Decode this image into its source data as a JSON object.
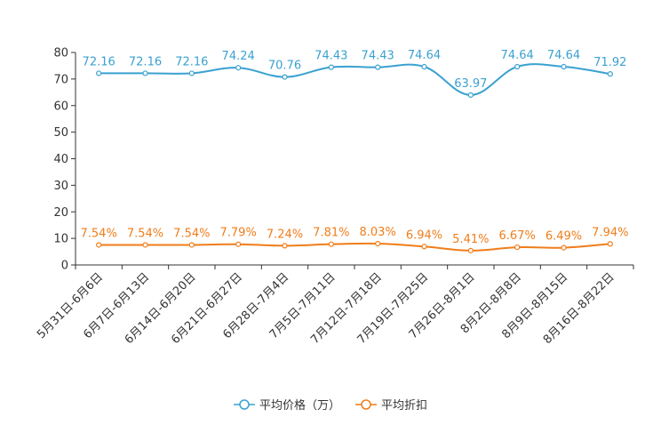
{
  "chart_data": {
    "type": "line",
    "title": "",
    "xlabel": "",
    "ylabel": "",
    "ylim": [
      0,
      80
    ],
    "yticks": [
      "0",
      "10",
      "20",
      "30",
      "40",
      "50",
      "60",
      "70",
      "80"
    ],
    "categories": [
      "5月31日-6月6日",
      "6月7日-6月13日",
      "6月14日-6月20日",
      "6月21日-6月27日",
      "6月28日-7月4日",
      "7月5日-7月11日",
      "7月12日-7月18日",
      "7月19日-7月25日",
      "7月26日-8月1日",
      "8月2日-8月8日",
      "8月9日-8月15日",
      "8月16日-8月22日"
    ],
    "series": [
      {
        "name": "平均价格（万）",
        "color": "#3aa1d0",
        "values": [
          72.16,
          72.16,
          72.16,
          74.24,
          70.76,
          74.43,
          74.43,
          74.64,
          63.97,
          74.64,
          74.64,
          71.92
        ],
        "labels": [
          "72.16",
          "72.16",
          "72.16",
          "74.24",
          "70.76",
          "74.43",
          "74.43",
          "74.64",
          "63.97",
          "74.64",
          "74.64",
          "71.92"
        ]
      },
      {
        "name": "平均折扣",
        "color": "#f07d1a",
        "values": [
          7.54,
          7.54,
          7.54,
          7.79,
          7.24,
          7.81,
          8.03,
          6.94,
          5.41,
          6.67,
          6.49,
          7.94
        ],
        "labels": [
          "7.54%",
          "7.54%",
          "7.54%",
          "7.79%",
          "7.24%",
          "7.81%",
          "8.03%",
          "6.94%",
          "5.41%",
          "6.67%",
          "6.49%",
          "7.94%"
        ]
      }
    ],
    "legend_position": "bottom-center",
    "grid": false
  }
}
